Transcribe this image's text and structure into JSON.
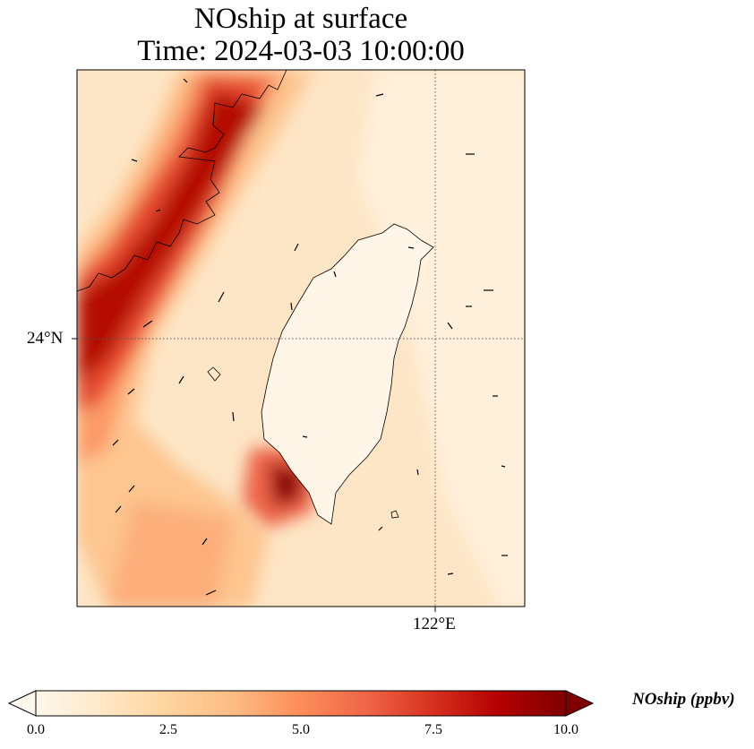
{
  "title_line1": "NOship at surface",
  "title_line2": "Time: 2024-03-03 10:00:00",
  "lat_label": "24°N",
  "lon_label": "122°E",
  "colorbar": {
    "label": "NOship (ppbv)",
    "ticks": [
      "0.0",
      "2.5",
      "5.0",
      "7.5",
      "10.0"
    ],
    "min": 0,
    "max": 10,
    "colormap": "OrRd",
    "colors": [
      "#fff7ec",
      "#fee8c8",
      "#fdd49e",
      "#fdbb84",
      "#fc8d59",
      "#ef6548",
      "#d7301f",
      "#b30000",
      "#7f0000"
    ],
    "extend": "both"
  },
  "map": {
    "projection": "plate-carree",
    "gridlines": "dotted",
    "features": [
      "coastline",
      "wind-vectors",
      "shipping-lane-plume"
    ]
  }
}
